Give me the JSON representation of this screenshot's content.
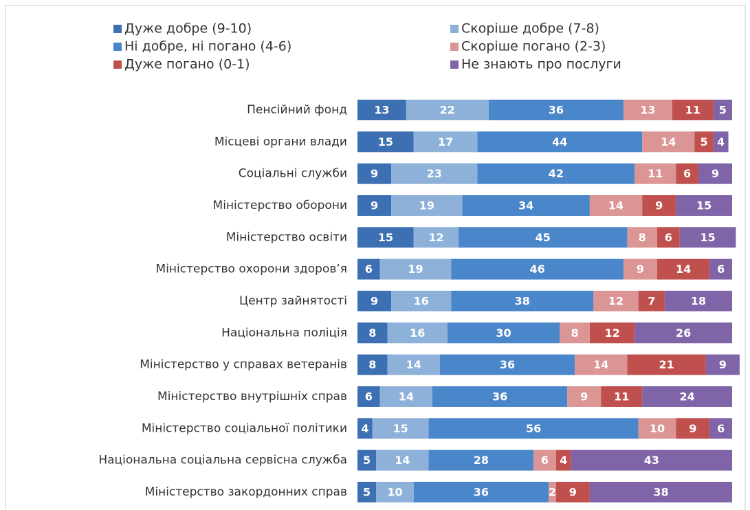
{
  "chart_data": {
    "type": "stacked-bar-horizontal",
    "categories": [
      "Пенсійний фонд",
      "Місцеві органи влади",
      "Соціальні служби",
      "Міністерство оборони",
      "Міністерство освіти",
      "Міністерство охорони здоров’я",
      "Центр зайнятості",
      "Національна поліція",
      "Міністерство у справах ветеранів",
      "Міністерство внутрішніх справ",
      "Міністерство соціальної політики",
      "Національна соціальна сервісна служба",
      "Міністерство закордонних справ"
    ],
    "series": [
      {
        "name": "Дуже добре (9-10)",
        "color": "#3c70b2",
        "values": [
          13,
          15,
          9,
          9,
          15,
          6,
          9,
          8,
          8,
          6,
          4,
          5,
          5
        ]
      },
      {
        "name": "Скоріше добре (7-8)",
        "color": "#8eb1d9",
        "values": [
          22,
          17,
          23,
          19,
          12,
          19,
          16,
          16,
          14,
          14,
          15,
          14,
          10
        ]
      },
      {
        "name": "Ні добре, ні погано (4-6)",
        "color": "#4a86ca",
        "values": [
          36,
          44,
          42,
          34,
          45,
          46,
          38,
          30,
          36,
          36,
          56,
          28,
          36
        ]
      },
      {
        "name": "Скоріше погано (2-3)",
        "color": "#da9594",
        "values": [
          13,
          14,
          11,
          14,
          8,
          9,
          12,
          8,
          14,
          9,
          10,
          6,
          2
        ]
      },
      {
        "name": "Дуже погано (0-1)",
        "color": "#c0504d",
        "values": [
          11,
          5,
          6,
          9,
          6,
          14,
          7,
          12,
          21,
          11,
          9,
          4,
          9
        ]
      },
      {
        "name": "Не знають про послуги",
        "color": "#8064a8",
        "values": [
          5,
          4,
          9,
          15,
          15,
          6,
          18,
          26,
          9,
          24,
          6,
          43,
          38
        ]
      }
    ],
    "xlim": [
      0,
      100
    ]
  }
}
